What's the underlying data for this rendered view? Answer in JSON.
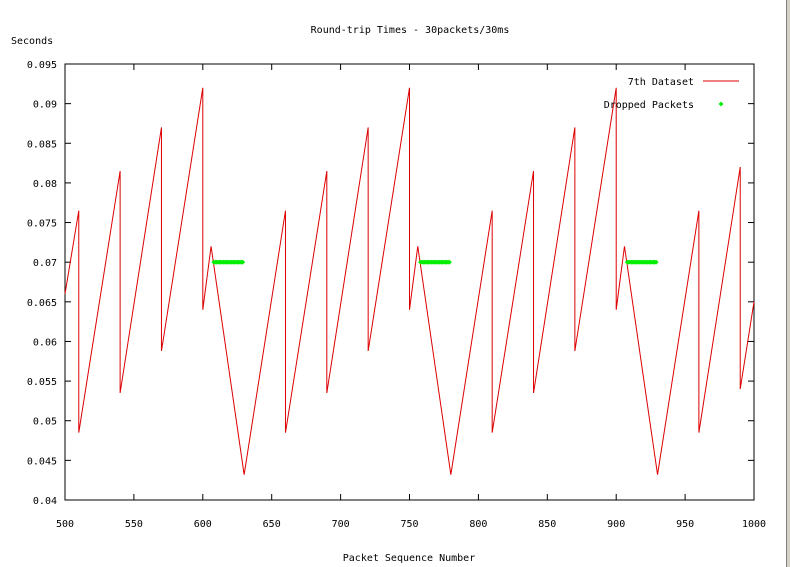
{
  "chart_data": {
    "type": "line",
    "title": "Round-trip Times - 30packets/30ms",
    "xlabel": "Packet Sequence Number",
    "ylabel": "Seconds",
    "xlim": [
      500,
      1000
    ],
    "ylim": [
      0.04,
      0.095
    ],
    "xticks": [
      "500",
      "550",
      "600",
      "650",
      "700",
      "750",
      "800",
      "850",
      "900",
      "950",
      "1000"
    ],
    "yticks": [
      "0.04",
      "0.045",
      "0.05",
      "0.055",
      "0.06",
      "0.065",
      "0.07",
      "0.075",
      "0.08",
      "0.085",
      "0.09",
      "0.095"
    ],
    "grid": false,
    "legend_position": "top-right",
    "colors": {
      "rtt": "#dd0000",
      "dropped": "#00ee00"
    },
    "series": [
      {
        "name": "7th Dataset",
        "kind": "line",
        "x": [
          500,
          510,
          510,
          540,
          540,
          570,
          570,
          600,
          600,
          606,
          630,
          660,
          660,
          690,
          690,
          720,
          720,
          750,
          750,
          756,
          780,
          810,
          810,
          840,
          840,
          870,
          870,
          900,
          900,
          906,
          930,
          960,
          960,
          990,
          990,
          1000
        ],
        "y": [
          0.066,
          0.0765,
          0.0485,
          0.0815,
          0.0535,
          0.087,
          0.0588,
          0.092,
          0.064,
          0.072,
          0.0432,
          0.0765,
          0.0485,
          0.0815,
          0.0535,
          0.087,
          0.0588,
          0.092,
          0.064,
          0.072,
          0.0432,
          0.0765,
          0.0485,
          0.0815,
          0.0535,
          0.087,
          0.0588,
          0.092,
          0.064,
          0.072,
          0.0432,
          0.0765,
          0.0485,
          0.082,
          0.054,
          0.065
        ]
      },
      {
        "name": "Dropped Packets",
        "kind": "points",
        "y_value": 0.07,
        "x": [
          608,
          609,
          610,
          611,
          612,
          613,
          614,
          615,
          616,
          617,
          618,
          619,
          620,
          621,
          622,
          623,
          624,
          625,
          626,
          627,
          628,
          629,
          758,
          759,
          760,
          761,
          762,
          763,
          764,
          765,
          766,
          767,
          768,
          769,
          770,
          771,
          772,
          773,
          774,
          775,
          776,
          777,
          778,
          779,
          908,
          909,
          910,
          911,
          912,
          913,
          914,
          915,
          916,
          917,
          918,
          919,
          920,
          921,
          922,
          923,
          924,
          925,
          926,
          927,
          928,
          929
        ]
      }
    ]
  }
}
